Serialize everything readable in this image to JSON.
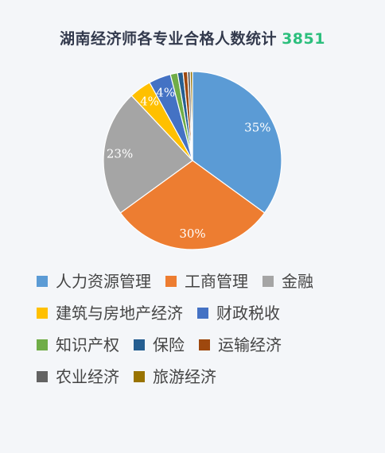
{
  "title": "湖南经济师各专业合格人数统计",
  "total": "3851",
  "chart_data": {
    "type": "pie",
    "title": "湖南经济师各专业合格人数统计",
    "total": 3851,
    "legend_position": "bottom",
    "slices": [
      {
        "name": "人力资源管理",
        "percent": 35,
        "label": "35%",
        "color": "#5b9bd5"
      },
      {
        "name": "工商管理",
        "percent": 30,
        "label": "30%",
        "color": "#ed7d31"
      },
      {
        "name": "金融",
        "percent": 23,
        "label": "23%",
        "color": "#a5a5a5"
      },
      {
        "name": "建筑与房地产经济",
        "percent": 4,
        "label": "4%",
        "color": "#ffc000"
      },
      {
        "name": "财政税收",
        "percent": 4,
        "label": "4%",
        "color": "#4472c4"
      },
      {
        "name": "知识产权",
        "percent": 1.3,
        "label": "",
        "color": "#70ad47"
      },
      {
        "name": "保险",
        "percent": 1,
        "label": "",
        "color": "#255e91"
      },
      {
        "name": "运输经济",
        "percent": 0.8,
        "label": "",
        "color": "#9e480e"
      },
      {
        "name": "农业经济",
        "percent": 0.5,
        "label": "",
        "color": "#636363"
      },
      {
        "name": "旅游经济",
        "percent": 0.4,
        "label": "",
        "color": "#997300"
      }
    ]
  }
}
